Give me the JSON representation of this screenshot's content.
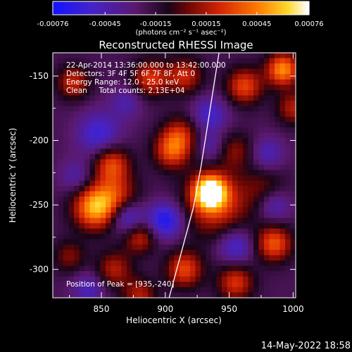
{
  "chart_data": {
    "type": "heatmap",
    "title": "Reconstructed RHESSI Image",
    "xlabel": "Heliocentric X (arcsec)",
    "ylabel": "Heliocentric Y (arcsec)",
    "xlim": [
      812,
      1002
    ],
    "ylim": [
      -322,
      -132
    ],
    "x_ticks": [
      "850",
      "900",
      "950",
      "1000"
    ],
    "x_tick_values": [
      850,
      900,
      950,
      1000
    ],
    "y_ticks": [
      "-150",
      "-200",
      "-250",
      "-300"
    ],
    "y_tick_values": [
      -150,
      -200,
      -250,
      -300
    ],
    "colorbar": {
      "min": -0.00076,
      "max": 0.00076,
      "tick_labels": [
        "-0.00076",
        "-0.00045",
        "-0.00015",
        "0.00015",
        "0.00045",
        "0.00076"
      ],
      "tick_values": [
        -0.00076,
        -0.00045,
        -0.00015,
        0.00015,
        0.00045,
        0.00076
      ],
      "units_label": "(photons cm⁻² s⁻¹ asec⁻²)"
    },
    "annotations": [
      "22-Apr-2014 13:36:00.000 to 13:42:00.000",
      "Detectors: 3F 4F 5F 6F 7F 8F, Att 0",
      "Energy Range: 12.0 - 25.0 keV",
      "Clean     Total counts: 2.13E+04"
    ],
    "peak_label": "Position of Peak = [935,-240]",
    "peak": {
      "x": 935,
      "y": -240
    },
    "peak_intensity_fraction": 1.0,
    "limb_line": {
      "points": [
        [
          903,
          -322
        ],
        [
          922,
          -252
        ],
        [
          928,
          -220
        ],
        [
          942,
          -132
        ]
      ]
    },
    "blobs": [
      {
        "x": 935,
        "y": -240,
        "amp": 1.0,
        "sigma": 9
      },
      {
        "x": 940,
        "y": -250,
        "amp": 0.5,
        "sigma": 18
      },
      {
        "x": 845,
        "y": -252,
        "amp": 0.8,
        "sigma": 12
      },
      {
        "x": 862,
        "y": -242,
        "amp": 0.4,
        "sigma": 12
      },
      {
        "x": 905,
        "y": -208,
        "amp": 0.55,
        "sigma": 10
      },
      {
        "x": 912,
        "y": -195,
        "amp": 0.4,
        "sigma": 10
      },
      {
        "x": 962,
        "y": -158,
        "amp": 0.55,
        "sigma": 10
      },
      {
        "x": 992,
        "y": -145,
        "amp": 0.75,
        "sigma": 9
      },
      {
        "x": 1000,
        "y": -175,
        "amp": 0.4,
        "sigma": 9
      },
      {
        "x": 985,
        "y": -280,
        "amp": 0.6,
        "sigma": 10
      },
      {
        "x": 955,
        "y": -310,
        "amp": 0.5,
        "sigma": 10
      },
      {
        "x": 915,
        "y": -300,
        "amp": 0.55,
        "sigma": 10
      },
      {
        "x": 860,
        "y": -300,
        "amp": 0.4,
        "sigma": 10
      },
      {
        "x": 880,
        "y": -275,
        "amp": 0.45,
        "sigma": 9
      },
      {
        "x": 858,
        "y": -218,
        "amp": 0.55,
        "sigma": 10
      },
      {
        "x": 888,
        "y": -152,
        "amp": 0.5,
        "sigma": 10
      },
      {
        "x": 915,
        "y": -150,
        "amp": 0.45,
        "sigma": 10
      },
      {
        "x": 828,
        "y": -155,
        "amp": 0.45,
        "sigma": 9
      },
      {
        "x": 955,
        "y": -208,
        "amp": 0.3,
        "sigma": 10
      },
      {
        "x": 978,
        "y": -238,
        "amp": 0.25,
        "sigma": 12
      },
      {
        "x": 825,
        "y": -290,
        "amp": 0.3,
        "sigma": 9
      },
      {
        "x": 880,
        "y": -320,
        "amp": 0.4,
        "sigma": 9
      },
      {
        "x": 870,
        "y": -260,
        "amp": -0.45,
        "sigma": 9
      },
      {
        "x": 848,
        "y": -195,
        "amp": -0.4,
        "sigma": 12
      },
      {
        "x": 900,
        "y": -262,
        "amp": -0.55,
        "sigma": 10
      },
      {
        "x": 955,
        "y": -282,
        "amp": -0.4,
        "sigma": 10
      },
      {
        "x": 985,
        "y": -250,
        "amp": -0.35,
        "sigma": 9
      },
      {
        "x": 980,
        "y": -210,
        "amp": -0.3,
        "sigma": 9
      },
      {
        "x": 935,
        "y": -180,
        "amp": -0.35,
        "sigma": 10
      },
      {
        "x": 935,
        "y": -205,
        "amp": -0.25,
        "sigma": 8
      },
      {
        "x": 830,
        "y": -228,
        "amp": -0.25,
        "sigma": 9
      },
      {
        "x": 840,
        "y": -315,
        "amp": -0.3,
        "sigma": 9
      },
      {
        "x": 870,
        "y": -170,
        "amp": -0.25,
        "sigma": 9
      }
    ]
  },
  "footer": {
    "date": "14-May-2022 18:58"
  }
}
